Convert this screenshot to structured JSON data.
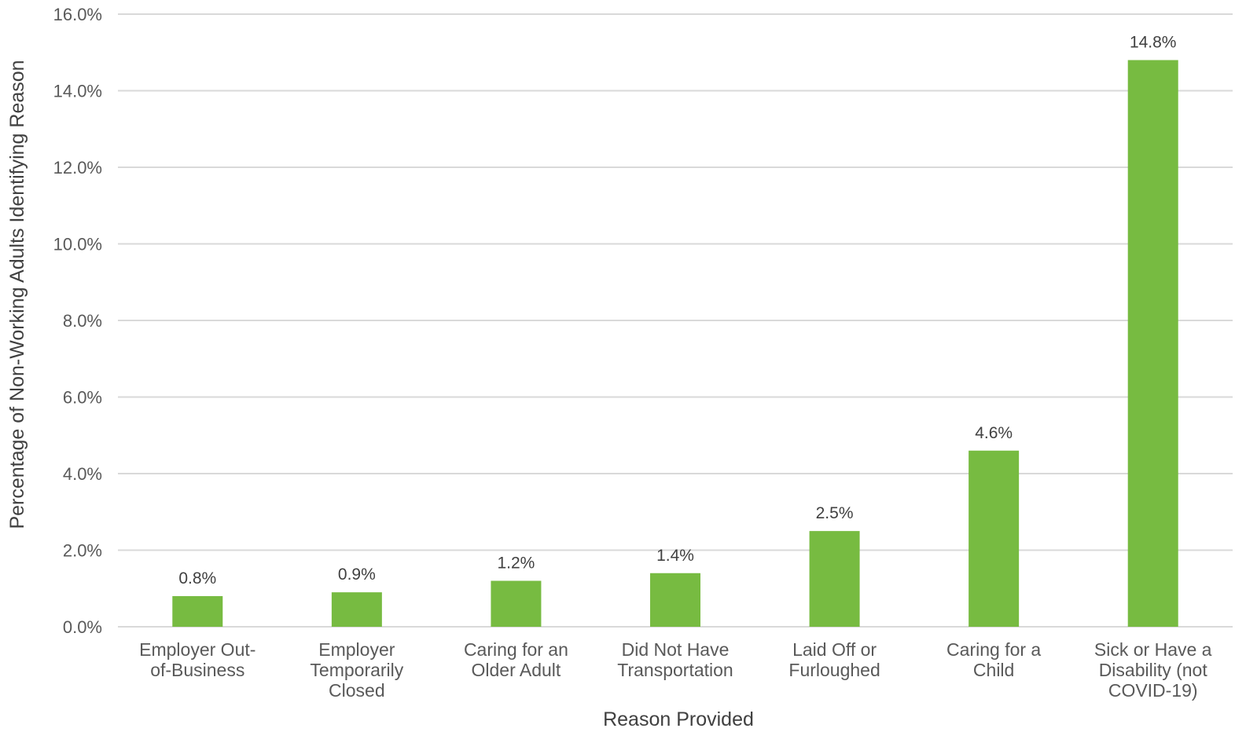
{
  "chart_data": {
    "type": "bar",
    "title": "",
    "xlabel": "Reason Provided",
    "ylabel": "Percentage of Non-Working Adults Identifying Reason",
    "categories": [
      [
        "Employer Out-",
        "of-Business"
      ],
      [
        "Employer",
        "Temporarily",
        "Closed"
      ],
      [
        "Caring for an",
        "Older Adult"
      ],
      [
        "Did Not Have",
        "Transportation"
      ],
      [
        "Laid Off or",
        "Furloughed"
      ],
      [
        "Caring for a",
        "Child"
      ],
      [
        "Sick or Have a",
        "Disability (not",
        "COVID-19)"
      ]
    ],
    "values": [
      0.8,
      0.9,
      1.2,
      1.4,
      2.5,
      4.6,
      14.8
    ],
    "data_labels": [
      "0.8%",
      "0.9%",
      "1.2%",
      "1.4%",
      "2.5%",
      "4.6%",
      "14.8%"
    ],
    "ylim": [
      0,
      16
    ],
    "yticks": [
      0,
      2,
      4,
      6,
      8,
      10,
      12,
      14,
      16
    ],
    "ytick_labels": [
      "0.0%",
      "2.0%",
      "4.0%",
      "6.0%",
      "8.0%",
      "10.0%",
      "12.0%",
      "14.0%",
      "16.0%"
    ],
    "grid": true,
    "legend": "none",
    "colors": {
      "bar": "#77bb41",
      "grid": "#d9d9d9"
    }
  }
}
